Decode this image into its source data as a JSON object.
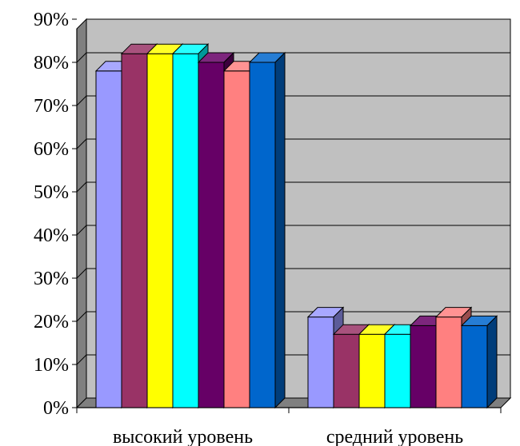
{
  "chart_data": {
    "type": "bar",
    "categories": [
      "высокий уровень",
      "средний уровень"
    ],
    "series": [
      {
        "values": [
          78,
          21
        ],
        "color": "#9999FF"
      },
      {
        "values": [
          82,
          17
        ],
        "color": "#993366"
      },
      {
        "values": [
          82,
          17
        ],
        "color": "#FFFF00"
      },
      {
        "values": [
          82,
          17
        ],
        "color": "#00FFFF"
      },
      {
        "values": [
          80,
          19
        ],
        "color": "#660066"
      },
      {
        "values": [
          78,
          21
        ],
        "color": "#FF8080"
      },
      {
        "values": [
          80,
          19
        ],
        "color": "#0066CC"
      }
    ],
    "yticks": [
      "0%",
      "10%",
      "20%",
      "30%",
      "40%",
      "50%",
      "60%",
      "70%",
      "80%",
      "90%"
    ],
    "ylim": [
      0,
      90
    ],
    "grid": true,
    "legend": "none",
    "three_d": true,
    "plot_background": "#C0C0C0",
    "wall_side_color": "#808080"
  }
}
